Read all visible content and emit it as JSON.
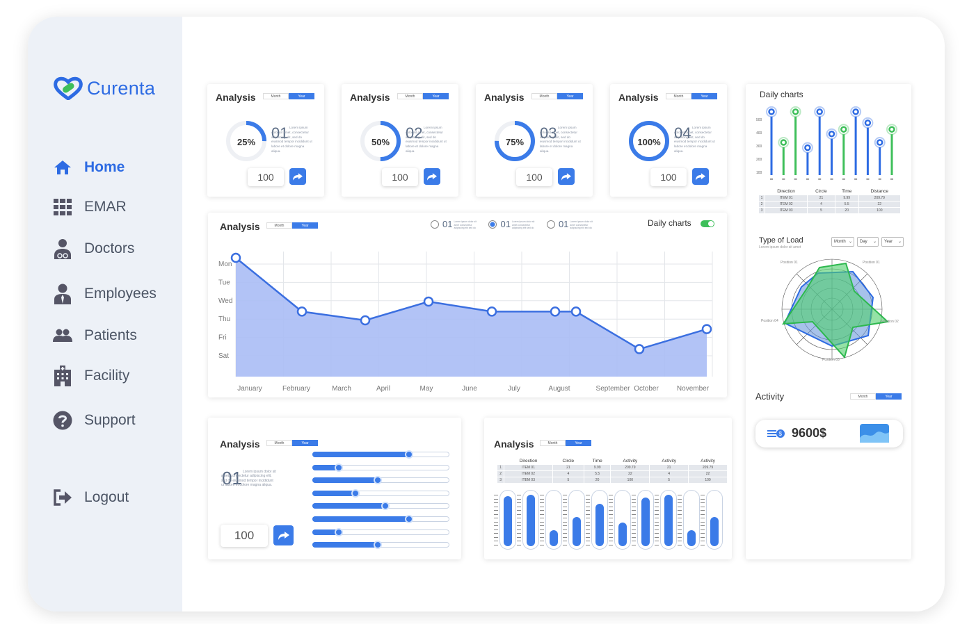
{
  "app": {
    "name": "Curenta"
  },
  "sidebar": {
    "items": [
      {
        "label": "Home",
        "icon": "home-icon"
      },
      {
        "label": "EMAR",
        "icon": "grid-icon"
      },
      {
        "label": "Doctors",
        "icon": "doctor-icon"
      },
      {
        "label": "Employees",
        "icon": "employee-icon"
      },
      {
        "label": "Patients",
        "icon": "patients-icon"
      },
      {
        "label": "Facility",
        "icon": "building-icon"
      },
      {
        "label": "Support",
        "icon": "help-icon"
      }
    ],
    "logout": "Logout"
  },
  "toggle": {
    "month": "Month",
    "year": "Year"
  },
  "stat_cards": [
    {
      "title": "Analysis",
      "percent": "25%",
      "progress": 0.25,
      "number": "01",
      "text": "Lorem ipsum dolor sit amet, consectetur adipiscing elit, sed do eiusmod tempor incididunt ut labore et dolore magna aliqua.",
      "value": "100"
    },
    {
      "title": "Analysis",
      "percent": "50%",
      "progress": 0.5,
      "number": "02",
      "text": "Lorem ipsum dolor sit amet, consectetur adipiscing elit, sed do eiusmod tempor incididunt ut labore et dolore magna aliqua.",
      "value": "100"
    },
    {
      "title": "Analysis",
      "percent": "75%",
      "progress": 0.75,
      "number": "03",
      "text": "Lorem ipsum dolor sit amet, consectetur adipiscing elit, sed do eiusmod tempor incididunt ut labore et dolore magna aliqua.",
      "value": "100"
    },
    {
      "title": "Analysis",
      "percent": "100%",
      "progress": 1.0,
      "number": "04",
      "text": "Lorem ipsum dolor sit amet, consectetur adipiscing elit, sed do eiusmod tempor incididunt ut labore et dolore magna aliqua.",
      "value": "100"
    }
  ],
  "main_chart": {
    "title": "Analysis",
    "legend": [
      {
        "number": "01",
        "selected": false
      },
      {
        "number": "01",
        "selected": true
      },
      {
        "number": "01",
        "selected": false
      }
    ],
    "legend_text": "Lorem ipsum dolor sit amet consectetur adipiscing elit sed do",
    "daily_label": "Daily charts"
  },
  "chart_data": {
    "type": "area",
    "x": [
      "January",
      "February",
      "March",
      "April",
      "May",
      "June",
      "July",
      "August",
      "September",
      "October",
      "November"
    ],
    "y_categories": [
      "Mon",
      "Tue",
      "Wed",
      "Thu",
      "Fri",
      "Sat"
    ],
    "points": [
      {
        "x": "January",
        "y": 0.95
      },
      {
        "x": "February",
        "y": 0.52
      },
      {
        "x": "March",
        "y": 0.45
      },
      {
        "x": "April",
        "y": 0.6
      },
      {
        "x": "May",
        "y": 0.52
      },
      {
        "x": "June",
        "y": 0.52
      },
      {
        "x": "July",
        "y": 0.52
      },
      {
        "x": "August",
        "y": 0.22
      },
      {
        "x": "September",
        "y": 0.38
      }
    ],
    "color": "#3b6fe0",
    "fill": "#aabdf5"
  },
  "slider_card": {
    "title": "Analysis",
    "number": "01",
    "text": "Lorem ipsum dolor sit amet, consectetur adipiscing elit, sed do eiusmod tempor incididunt ut labore et dolore magna aliqua.",
    "value": "100",
    "sliders": [
      0.7,
      0.19,
      0.47,
      0.31,
      0.53,
      0.7,
      0.19,
      0.47
    ]
  },
  "table_card": {
    "title": "Analysis",
    "headers": [
      "",
      "Direction",
      "Circle",
      "Time",
      "Activity",
      "Activity",
      "Activity"
    ],
    "rows": [
      [
        "1",
        "ITEM 01",
        "21",
        "9.99",
        "209.79",
        "21",
        "209.79"
      ],
      [
        "2",
        "ITEM 02",
        "4",
        "5.5",
        "22",
        "4",
        "22"
      ],
      [
        "3",
        "ITEM 03",
        "5",
        "20",
        "100",
        "5",
        "100"
      ]
    ],
    "bars": [
      0.95,
      0.98,
      0.3,
      0.55,
      0.8,
      0.45,
      0.92,
      0.98,
      0.3,
      0.55
    ]
  },
  "right_panel": {
    "daily_title": "Daily charts",
    "y_ticks": [
      "500",
      "400",
      "300",
      "200",
      "100"
    ],
    "lollipops": [
      {
        "color": "blue",
        "value": 0.97
      },
      {
        "color": "green",
        "value": 0.5
      },
      {
        "color": "green",
        "value": 0.97
      },
      {
        "color": "blue",
        "value": 0.42
      },
      {
        "color": "blue",
        "value": 0.97
      },
      {
        "color": "blue",
        "value": 0.63
      },
      {
        "color": "green",
        "value": 0.7
      },
      {
        "color": "blue",
        "value": 0.97
      },
      {
        "color": "blue",
        "value": 0.8
      },
      {
        "color": "blue",
        "value": 0.5
      },
      {
        "color": "green",
        "value": 0.7
      }
    ],
    "table_headers": [
      "",
      "Direction",
      "Circle",
      "Time",
      "Distance"
    ],
    "table_rows": [
      [
        "1",
        "ITEM 01",
        "21",
        "9.99",
        "209.79"
      ],
      [
        "2",
        "ITEM 02",
        "4",
        "5.5",
        "22"
      ],
      [
        "3",
        "ITEM 03",
        "5",
        "20",
        "100"
      ]
    ],
    "load_title": "Type of Load",
    "load_sub": "Lorem ipsum dolor sit amet",
    "selects": [
      "Month",
      "Day",
      "Year"
    ],
    "radar_labels": [
      "Position 01",
      "Position 01",
      "Position 02",
      "Position 03",
      "Position 04"
    ],
    "activity_title": "Activity",
    "activity_value": "9600$"
  },
  "colors": {
    "accent": "#2d6be3",
    "green": "#3ebf5a",
    "sidebar": "#edf1f7"
  }
}
